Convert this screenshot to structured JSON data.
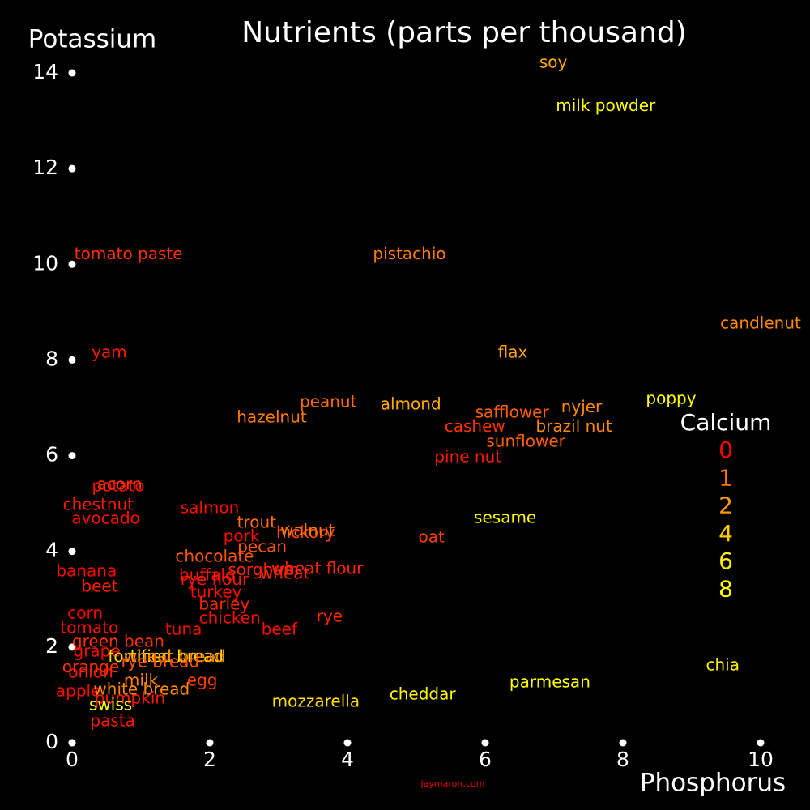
{
  "chart_data": {
    "type": "text-scatter",
    "title": "Nutrients (parts per thousand)",
    "x_label": "Phosphorus",
    "y_label": "Potassium",
    "footer": "jaymaron.com",
    "xlim": [
      0,
      10
    ],
    "ylim": [
      0,
      14
    ],
    "xticks": [
      0,
      2,
      4,
      6,
      8,
      10
    ],
    "yticks": [
      0,
      2,
      4,
      6,
      8,
      10,
      12,
      14
    ],
    "legend": {
      "title": "Calcium",
      "values": [
        0,
        1,
        2,
        4,
        6,
        8
      ],
      "colors": [
        "#ff0000",
        "#ff7700",
        "#ff9900",
        "#ffcc00",
        "#ffee00",
        "#ffff00"
      ]
    },
    "labels": [
      "soy",
      "milk powder",
      "tomato paste",
      "pistachio",
      "candlenut",
      "yam",
      "flax",
      "peanut",
      "almond",
      "hazelnut",
      "safflower",
      "nyjer",
      "poppy",
      "cashew",
      "brazil nut",
      "sunflower",
      "pine nut",
      "potato",
      "acorn",
      "chestnut",
      "avocado",
      "salmon",
      "sesame",
      "trout",
      "hickory",
      "walnut",
      "pork",
      "oat",
      "pecan",
      "chocolate",
      "banana",
      "sorghum",
      "wheat flour",
      "wheat",
      "buffalo",
      "rye flour",
      "beet",
      "turkey",
      "barley",
      "chicken",
      "rye",
      "corn",
      "tomato",
      "tuna",
      "beef",
      "green bean",
      "grape",
      "fortified bread",
      "wheat bread",
      "rye bread",
      "orange",
      "onion",
      "milk",
      "egg",
      "apple",
      "white bread",
      "pumpkin",
      "swiss",
      "pasta",
      "mozzarella",
      "cheddar",
      "parmesan",
      "chia"
    ],
    "x": [
      6.99,
      7.75,
      0.82,
      4.9,
      10.0,
      0.54,
      6.4,
      3.72,
      4.92,
      2.9,
      6.39,
      7.4,
      8.7,
      5.85,
      7.29,
      6.59,
      5.75,
      0.67,
      0.69,
      0.38,
      0.49,
      2.0,
      6.29,
      2.68,
      3.39,
      3.42,
      2.46,
      5.22,
      2.76,
      2.07,
      0.21,
      2.78,
      3.56,
      3.09,
      1.96,
      2.07,
      0.4,
      2.09,
      2.21,
      2.29,
      3.74,
      0.19,
      0.25,
      1.62,
      3.01,
      0.67,
      0.36,
      1.36,
      1.49,
      1.28,
      0.27,
      0.27,
      1.0,
      1.89,
      0.09,
      1.01,
      0.84,
      0.56,
      0.59,
      3.54,
      5.09,
      6.94,
      9.45
    ],
    "y": [
      14.2,
      13.3,
      10.2,
      10.2,
      8.75,
      8.14,
      8.14,
      7.11,
      7.06,
      6.79,
      6.89,
      7.0,
      7.18,
      6.59,
      6.59,
      6.28,
      5.96,
      5.35,
      5.38,
      4.96,
      4.67,
      4.89,
      4.69,
      4.59,
      4.38,
      4.42,
      4.3,
      4.28,
      4.08,
      3.88,
      3.57,
      3.6,
      3.62,
      3.52,
      3.49,
      3.39,
      3.25,
      3.13,
      2.88,
      2.59,
      2.62,
      2.69,
      2.39,
      2.35,
      2.35,
      2.1,
      1.9,
      1.79,
      1.79,
      1.68,
      1.57,
      1.46,
      1.29,
      1.29,
      1.07,
      1.1,
      0.91,
      0.78,
      0.44,
      0.85,
      1.0,
      1.25,
      1.61
    ],
    "calcium": [
      2.8,
      9,
      0.4,
      1.1,
      1.5,
      0.2,
      2.5,
      0.9,
      2.7,
      1.1,
      0.8,
      1.5,
      14,
      0.4,
      1.6,
      0.8,
      0.2,
      0.1,
      0.4,
      0.2,
      0.1,
      0.1,
      9.8,
      0.9,
      0.6,
      1.0,
      0.1,
      0.5,
      0.7,
      0.7,
      0.05,
      0.3,
      0.3,
      0.3,
      0.1,
      0.2,
      0.2,
      0.1,
      0.3,
      0.1,
      0.3,
      0.02,
      0.1,
      0.1,
      0.1,
      0.4,
      0.1,
      5,
      1.5,
      0.7,
      0.4,
      0.2,
      1.2,
      0.5,
      0.06,
      1.5,
      0.2,
      8,
      0.2,
      5,
      7,
      11,
      6.3
    ]
  }
}
